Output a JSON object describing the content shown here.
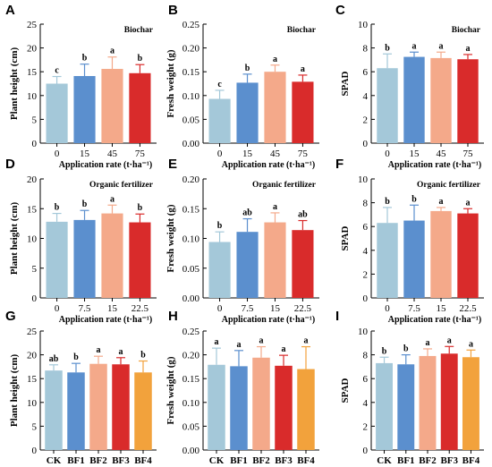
{
  "colors": {
    "light_blue": "#a4c8d9",
    "blue": "#5b8fce",
    "salmon": "#f4a98a",
    "red": "#d92b2b",
    "orange": "#f2a23c",
    "axis": "#000000"
  },
  "chart_data": [
    {
      "letter": "A",
      "type": "bar",
      "title": "Biochar",
      "xlabel": "Application rate (t·ha⁻¹)",
      "ylabel": "Plant height (cm)",
      "ylim": [
        0,
        25
      ],
      "yticks": [
        0,
        5,
        10,
        15,
        20,
        25
      ],
      "categories": [
        "0",
        "15",
        "45",
        "75"
      ],
      "values": [
        12.5,
        14.1,
        15.6,
        14.7
      ],
      "errors": [
        1.5,
        2.5,
        2.5,
        1.8
      ],
      "letters": [
        "c",
        "b",
        "a",
        "b"
      ],
      "colors": [
        "#a4c8d9",
        "#5b8fce",
        "#f4a98a",
        "#d92b2b"
      ]
    },
    {
      "letter": "B",
      "type": "bar",
      "title": "Biochar",
      "xlabel": "Application rate (t·ha⁻¹)",
      "ylabel": "Fresh weight (g)",
      "ylim": [
        0,
        0.25
      ],
      "yticks": [
        0.0,
        0.05,
        0.1,
        0.15,
        0.2,
        0.25
      ],
      "categories": [
        "0",
        "15",
        "45",
        "75"
      ],
      "values": [
        0.093,
        0.127,
        0.15,
        0.129
      ],
      "errors": [
        0.018,
        0.018,
        0.014,
        0.014
      ],
      "letters": [
        "c",
        "b",
        "a",
        "a"
      ],
      "colors": [
        "#a4c8d9",
        "#5b8fce",
        "#f4a98a",
        "#d92b2b"
      ]
    },
    {
      "letter": "C",
      "type": "bar",
      "title": "Biochar",
      "xlabel": "Application rate (t·ha⁻¹)",
      "ylabel": "SPAD",
      "ylim": [
        0,
        10
      ],
      "yticks": [
        0,
        2,
        4,
        6,
        8,
        10
      ],
      "categories": [
        "0",
        "15",
        "45",
        "75"
      ],
      "values": [
        6.3,
        7.25,
        7.15,
        7.05
      ],
      "errors": [
        1.2,
        0.4,
        0.5,
        0.4
      ],
      "letters": [
        "b",
        "a",
        "a",
        "a"
      ],
      "colors": [
        "#a4c8d9",
        "#5b8fce",
        "#f4a98a",
        "#d92b2b"
      ]
    },
    {
      "letter": "D",
      "type": "bar",
      "title": "Organic fertilizer",
      "xlabel": "Application rate (t·ha⁻¹)",
      "ylabel": "Plant height (cm)",
      "ylim": [
        0,
        20
      ],
      "yticks": [
        0,
        5,
        10,
        15,
        20
      ],
      "categories": [
        "0",
        "7.5",
        "15",
        "22.5"
      ],
      "values": [
        12.8,
        13.1,
        14.2,
        12.7
      ],
      "errors": [
        1.4,
        1.6,
        1.4,
        1.4
      ],
      "letters": [
        "b",
        "b",
        "a",
        "b"
      ],
      "colors": [
        "#a4c8d9",
        "#5b8fce",
        "#f4a98a",
        "#d92b2b"
      ]
    },
    {
      "letter": "E",
      "type": "bar",
      "title": "Organic fertilizer",
      "xlabel": "Application rate (t·ha⁻¹)",
      "ylabel": "Fresh weight (g)",
      "ylim": [
        0,
        0.2
      ],
      "yticks": [
        0.0,
        0.05,
        0.1,
        0.15,
        0.2
      ],
      "categories": [
        "0",
        "7.5",
        "15",
        "22.5"
      ],
      "values": [
        0.094,
        0.111,
        0.127,
        0.114
      ],
      "errors": [
        0.017,
        0.022,
        0.016,
        0.016
      ],
      "letters": [
        "b",
        "ab",
        "a",
        "ab"
      ],
      "colors": [
        "#a4c8d9",
        "#5b8fce",
        "#f4a98a",
        "#d92b2b"
      ]
    },
    {
      "letter": "F",
      "type": "bar",
      "title": "Organic fertilizer",
      "xlabel": "Application rate (t·ha⁻¹)",
      "ylabel": "SPAD",
      "ylim": [
        0,
        10
      ],
      "yticks": [
        0,
        2,
        4,
        6,
        8,
        10
      ],
      "categories": [
        "0",
        "7.5",
        "15",
        "22.5"
      ],
      "values": [
        6.3,
        6.5,
        7.3,
        7.1
      ],
      "errors": [
        1.3,
        1.3,
        0.3,
        0.4
      ],
      "letters": [
        "b",
        "b",
        "a",
        "a"
      ],
      "colors": [
        "#a4c8d9",
        "#5b8fce",
        "#f4a98a",
        "#d92b2b"
      ]
    },
    {
      "letter": "G",
      "type": "bar",
      "title": "",
      "xlabel": "",
      "ylabel": "Plant height (cm)",
      "ylim": [
        0,
        25
      ],
      "yticks": [
        0,
        5,
        10,
        15,
        20,
        25
      ],
      "categories": [
        "CK",
        "BF1",
        "BF2",
        "BF3",
        "BF4"
      ],
      "values": [
        16.7,
        16.3,
        18.1,
        18.0,
        16.3
      ],
      "errors": [
        1.2,
        1.9,
        1.6,
        1.4,
        2.4
      ],
      "letters": [
        "ab",
        "b",
        "a",
        "a",
        "b"
      ],
      "colors": [
        "#a4c8d9",
        "#5b8fce",
        "#f4a98a",
        "#d92b2b",
        "#f2a23c"
      ]
    },
    {
      "letter": "H",
      "type": "bar",
      "title": "",
      "xlabel": "",
      "ylabel": "Fresh weight (g)",
      "ylim": [
        0,
        0.25
      ],
      "yticks": [
        0.0,
        0.05,
        0.1,
        0.15,
        0.2,
        0.25
      ],
      "categories": [
        "CK",
        "BF1",
        "BF2",
        "BF3",
        "BF4"
      ],
      "values": [
        0.179,
        0.176,
        0.194,
        0.177,
        0.17
      ],
      "errors": [
        0.035,
        0.033,
        0.023,
        0.022,
        0.047
      ],
      "letters": [
        "a",
        "a",
        "a",
        "a",
        "a"
      ],
      "colors": [
        "#a4c8d9",
        "#5b8fce",
        "#f4a98a",
        "#d92b2b",
        "#f2a23c"
      ]
    },
    {
      "letter": "I",
      "type": "bar",
      "title": "",
      "xlabel": "",
      "ylabel": "SPAD",
      "ylim": [
        0,
        10
      ],
      "yticks": [
        0,
        2,
        4,
        6,
        8,
        10
      ],
      "categories": [
        "CK",
        "BF1",
        "BF2",
        "BF3",
        "BF4"
      ],
      "values": [
        7.3,
        7.2,
        7.9,
        8.1,
        7.8
      ],
      "errors": [
        0.5,
        0.8,
        0.6,
        0.6,
        0.6
      ],
      "letters": [
        "b",
        "b",
        "a",
        "a",
        "a"
      ],
      "colors": [
        "#a4c8d9",
        "#5b8fce",
        "#f4a98a",
        "#d92b2b",
        "#f2a23c"
      ]
    }
  ]
}
